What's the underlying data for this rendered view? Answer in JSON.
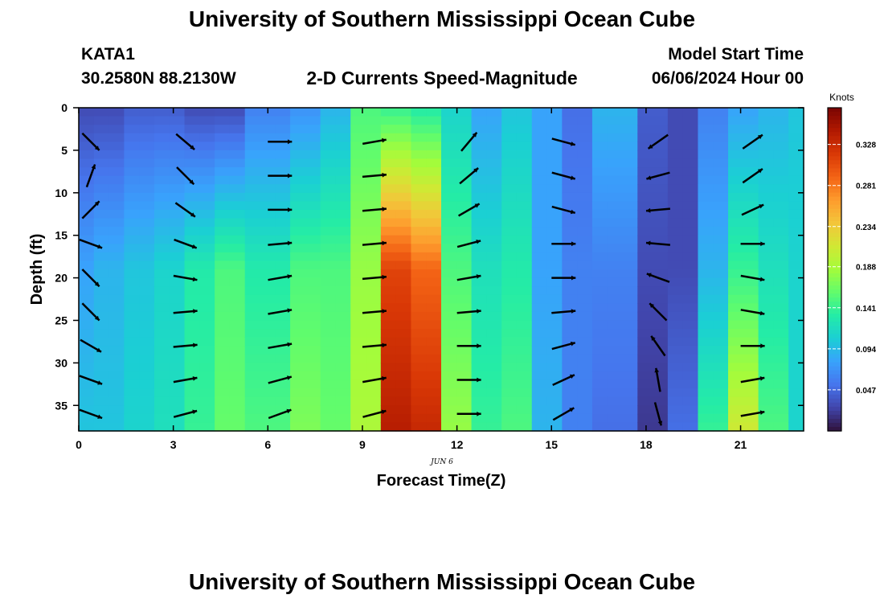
{
  "header": {
    "title": "University of Southern Mississippi Ocean Cube",
    "footer_title": "University of Southern Mississippi Ocean Cube",
    "station_id": "KATA1",
    "coordinates": "30.2580N  88.2130W",
    "subtitle": "2-D Currents Speed-Magnitude",
    "model_start_label": "Model Start Time",
    "model_start_time": "06/06/2024 Hour 00"
  },
  "chart_data": {
    "type": "heatmap",
    "title": "2-D Currents Speed-Magnitude",
    "xlabel": "Forecast Time(Z)",
    "ylabel": "Depth (ft)",
    "date_label": "JUN 6",
    "x_ticks": [
      0,
      3,
      6,
      9,
      12,
      15,
      18,
      21
    ],
    "y_ticks": [
      0,
      5,
      10,
      15,
      20,
      25,
      30,
      35
    ],
    "xlim": [
      0,
      23
    ],
    "ylim": [
      38,
      0
    ],
    "y_inverted": true,
    "colorbar": {
      "label": "Knots",
      "ticks": [
        0.047,
        0.094,
        0.141,
        0.188,
        0.234,
        0.281,
        0.328
      ],
      "range": [
        0.0,
        0.37
      ],
      "colormap": [
        "#30123b",
        "#4145ab",
        "#4675ed",
        "#39a2fc",
        "#1bcfd4",
        "#24eca6",
        "#61fc6c",
        "#a4fc3b",
        "#d1e834",
        "#f3c63a",
        "#fe9b2d",
        "#f36315",
        "#d93806",
        "#b11901",
        "#7a0402"
      ]
    },
    "speed_profile_by_hour": [
      {
        "hour": 0,
        "surface": 0.03,
        "mid": 0.08,
        "bottom": 0.1
      },
      {
        "hour": 1,
        "surface": 0.03,
        "mid": 0.09,
        "bottom": 0.1
      },
      {
        "hour": 2,
        "surface": 0.04,
        "mid": 0.1,
        "bottom": 0.11
      },
      {
        "hour": 3,
        "surface": 0.04,
        "mid": 0.11,
        "bottom": 0.12
      },
      {
        "hour": 4,
        "surface": 0.03,
        "mid": 0.13,
        "bottom": 0.14
      },
      {
        "hour": 5,
        "surface": 0.03,
        "mid": 0.15,
        "bottom": 0.16
      },
      {
        "hour": 6,
        "surface": 0.06,
        "mid": 0.13,
        "bottom": 0.15
      },
      {
        "hour": 7,
        "surface": 0.07,
        "mid": 0.15,
        "bottom": 0.17
      },
      {
        "hour": 8,
        "surface": 0.09,
        "mid": 0.15,
        "bottom": 0.16
      },
      {
        "hour": 9,
        "surface": 0.15,
        "mid": 0.18,
        "bottom": 0.19
      },
      {
        "hour": 10,
        "surface": 0.14,
        "mid": 0.31,
        "bottom": 0.34
      },
      {
        "hour": 11,
        "surface": 0.13,
        "mid": 0.29,
        "bottom": 0.33
      },
      {
        "hour": 12,
        "surface": 0.11,
        "mid": 0.15,
        "bottom": 0.18
      },
      {
        "hour": 13,
        "surface": 0.08,
        "mid": 0.12,
        "bottom": 0.14
      },
      {
        "hour": 14,
        "surface": 0.1,
        "mid": 0.13,
        "bottom": 0.15
      },
      {
        "hour": 15,
        "surface": 0.08,
        "mid": 0.08,
        "bottom": 0.09
      },
      {
        "hour": 16,
        "surface": 0.05,
        "mid": 0.06,
        "bottom": 0.06
      },
      {
        "hour": 17,
        "surface": 0.09,
        "mid": 0.06,
        "bottom": 0.05
      },
      {
        "hour": 18,
        "surface": 0.04,
        "mid": 0.03,
        "bottom": 0.02
      },
      {
        "hour": 19,
        "surface": 0.03,
        "mid": 0.03,
        "bottom": 0.05
      },
      {
        "hour": 20,
        "surface": 0.06,
        "mid": 0.09,
        "bottom": 0.14
      },
      {
        "hour": 21,
        "surface": 0.08,
        "mid": 0.14,
        "bottom": 0.21
      },
      {
        "hour": 22,
        "surface": 0.09,
        "mid": 0.12,
        "bottom": 0.15
      },
      {
        "hour": 23,
        "surface": 0.1,
        "mid": 0.11,
        "bottom": 0.11
      }
    ],
    "vectors": [
      {
        "hour": 0,
        "directions_deg": [
          315,
          70,
          45,
          -20,
          -45,
          -45,
          -30,
          -20,
          -20
        ]
      },
      {
        "hour": 3,
        "directions_deg": [
          -40,
          -45,
          -35,
          -20,
          -10,
          5,
          5,
          10,
          15
        ]
      },
      {
        "hour": 6,
        "directions_deg": [
          0,
          0,
          0,
          5,
          10,
          10,
          10,
          15,
          20
        ]
      },
      {
        "hour": 9,
        "directions_deg": [
          10,
          5,
          5,
          5,
          5,
          5,
          5,
          10,
          15
        ]
      },
      {
        "hour": 12,
        "directions_deg": [
          50,
          40,
          30,
          15,
          10,
          5,
          0,
          0,
          0
        ]
      },
      {
        "hour": 15,
        "directions_deg": [
          -15,
          -15,
          -15,
          0,
          0,
          5,
          15,
          25,
          30
        ]
      },
      {
        "hour": 18,
        "directions_deg": [
          -145,
          -165,
          -175,
          175,
          160,
          135,
          125,
          100,
          -75
        ]
      },
      {
        "hour": 21,
        "directions_deg": [
          35,
          35,
          25,
          0,
          -10,
          -10,
          0,
          10,
          10
        ]
      }
    ]
  }
}
